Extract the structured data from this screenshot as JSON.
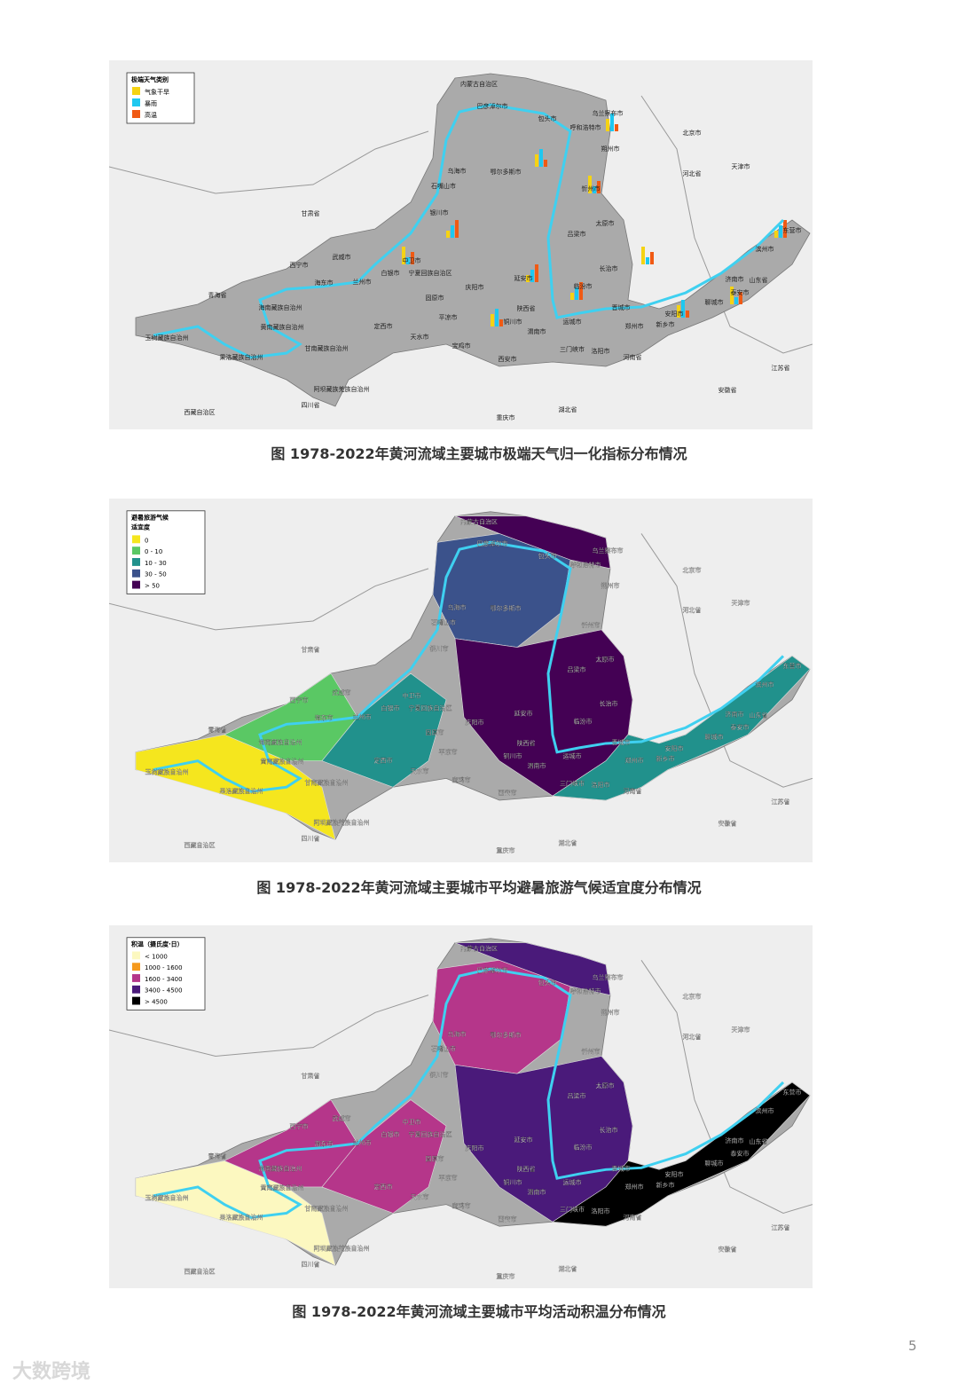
{
  "figures": [
    {
      "legend": {
        "title": [
          "极端天气类别"
        ],
        "items": [
          {
            "label": "气象干旱",
            "color": "#f5d313"
          },
          {
            "label": "暴雨",
            "color": "#1ec8f0"
          },
          {
            "label": "高温",
            "color": "#f05a14"
          }
        ]
      },
      "places": [
        "内蒙古自治区",
        "巴彦淖尔市",
        "包头市",
        "乌兰察布市",
        "呼和浩特市",
        "朔州市",
        "乌海市",
        "鄂尔多斯市",
        "石嘴山市",
        "忻州市",
        "银川市",
        "太原市",
        "吕梁市",
        "甘肃省",
        "武威市",
        "中卫市",
        "西宁市",
        "兰州市",
        "白银市",
        "宁夏回族自治区",
        "延安市",
        "庆阳市",
        "临汾市",
        "长治市",
        "青海省",
        "海东市",
        "固原市",
        "陕西省",
        "晋城市",
        "安阳市",
        "平凉市",
        "定西市",
        "铜川市",
        "运城市",
        "新乡市",
        "海南藏族自治州",
        "黄南藏族自治州",
        "天水市",
        "渭南市",
        "郑州市",
        "玉树藏族自治州",
        "宝鸡市",
        "西安市",
        "三门峡市",
        "洛阳市",
        "河南省",
        "甘南藏族自治州",
        "果洛藏族自治州",
        "阿坝藏族羌族自治州",
        "四川省",
        "湖北省",
        "重庆市",
        "西藏自治区",
        "北京市",
        "天津市",
        "河北省",
        "东营市",
        "滨州市",
        "济南市",
        "山东省",
        "泰安市",
        "聊城市",
        "江苏省",
        "安徽省"
      ],
      "caption": "图 1978-2022年黄河流域主要城市极端天气归一化指标分布情况"
    },
    {
      "legend": {
        "title": [
          "避暑旅游气候",
          "适宜度"
        ],
        "items": [
          {
            "label": "0",
            "color": "#f5e61e"
          },
          {
            "label": "0 - 10",
            "color": "#5ac864"
          },
          {
            "label": "10 - 30",
            "color": "#21918c"
          },
          {
            "label": "30 - 50",
            "color": "#3b528b"
          },
          {
            "label": "> 50",
            "color": "#440154"
          }
        ]
      },
      "places": [
        "内蒙古自治区",
        "巴彦淖尔市",
        "包头市",
        "乌兰察布市",
        "呼和浩特市",
        "朔州市",
        "乌海市",
        "鄂尔多斯市",
        "石嘴山市",
        "忻州市",
        "银川市",
        "太原市",
        "吕梁市",
        "甘肃省",
        "武威市",
        "中卫市",
        "西宁市",
        "兰州市",
        "白银市",
        "宁夏回族自治区",
        "延安市",
        "庆阳市",
        "临汾市",
        "长治市",
        "青海省",
        "海东市",
        "固原市",
        "陕西省",
        "晋城市",
        "安阳市",
        "平凉市",
        "定西市",
        "铜川市",
        "运城市",
        "新乡市",
        "海南藏族自治州",
        "黄南藏族自治州",
        "天水市",
        "渭南市",
        "郑州市",
        "玉树藏族自治州",
        "宝鸡市",
        "西安市",
        "三门峡市",
        "洛阳市",
        "河南省",
        "甘南藏族自治州",
        "果洛藏族自治州",
        "阿坝藏族羌族自治州",
        "四川省",
        "湖北省",
        "重庆市",
        "西藏自治区",
        "北京市",
        "天津市",
        "河北省",
        "东营市",
        "滨州市",
        "济南市",
        "山东省",
        "泰安市",
        "聊城市",
        "江苏省",
        "安徽省"
      ],
      "caption": "图 1978-2022年黄河流域主要城市平均避暑旅游气候适宜度分布情况"
    },
    {
      "legend": {
        "title": [
          "积温（摄氏度·日）"
        ],
        "items": [
          {
            "label": "< 1000",
            "color": "#fcf8c0"
          },
          {
            "label": "1000 - 1600",
            "color": "#f59a1e"
          },
          {
            "label": "1600 - 3400",
            "color": "#b5368a"
          },
          {
            "label": "3400 - 4500",
            "color": "#4a1a7a"
          },
          {
            "label": "> 4500",
            "color": "#000000"
          }
        ]
      },
      "places": [
        "内蒙古自治区",
        "巴彦淖尔市",
        "包头市",
        "乌兰察布市",
        "呼和浩特市",
        "朔州市",
        "乌海市",
        "鄂尔多斯市",
        "石嘴山市",
        "忻州市",
        "银川市",
        "太原市",
        "吕梁市",
        "甘肃省",
        "武威市",
        "中卫市",
        "西宁市",
        "兰州市",
        "白银市",
        "宁夏回族自治区",
        "延安市",
        "庆阳市",
        "临汾市",
        "长治市",
        "青海省",
        "海东市",
        "固原市",
        "陕西省",
        "晋城市",
        "安阳市",
        "平凉市",
        "定西市",
        "铜川市",
        "运城市",
        "新乡市",
        "海南藏族自治州",
        "黄南藏族自治州",
        "天水市",
        "渭南市",
        "郑州市",
        "玉树藏族自治州",
        "宝鸡市",
        "西安市",
        "三门峡市",
        "洛阳市",
        "河南省",
        "甘南藏族自治州",
        "果洛藏族自治州",
        "阿坝藏族羌族自治州",
        "四川省",
        "湖北省",
        "重庆市",
        "西藏自治区",
        "北京市",
        "天津市",
        "河北省",
        "东营市",
        "滨州市",
        "济南市",
        "山东省",
        "泰安市",
        "聊城市",
        "江苏省",
        "安徽省"
      ],
      "caption": "图 1978-2022年黄河流域主要城市平均活动积温分布情况"
    }
  ],
  "page_number": "5",
  "logo": "大数跨境"
}
